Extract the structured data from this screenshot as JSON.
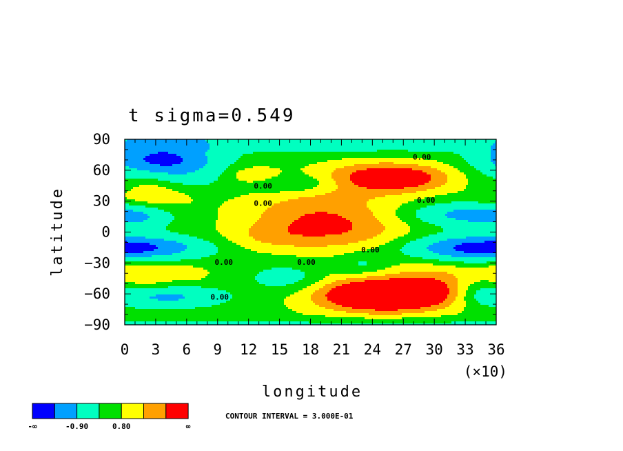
{
  "chart_data": {
    "type": "heatmap",
    "title": "t sigma=0.549",
    "xlabel": "longitude",
    "ylabel": "latitude",
    "x_scale_note": "(×10)",
    "xlim": [
      0,
      36
    ],
    "ylim": [
      -90,
      90
    ],
    "x_ticks": [
      "0",
      "3",
      "6",
      "9",
      "12",
      "15",
      "18",
      "21",
      "24",
      "27",
      "30",
      "33",
      "36"
    ],
    "y_ticks": [
      "90",
      "60",
      "30",
      "0",
      "-30",
      "-60",
      "-90"
    ],
    "contour_interval_text": "CONTOUR INTERVAL = 3.000E-01",
    "contour_labels": [
      {
        "text": "0.00",
        "lon": 28.8,
        "lat": 73
      },
      {
        "text": "0.00",
        "lon": 13.4,
        "lat": 45
      },
      {
        "text": "0.00",
        "lon": 13.4,
        "lat": 28
      },
      {
        "text": "0.00",
        "lon": 29.2,
        "lat": 31
      },
      {
        "text": "0.00",
        "lon": 23.8,
        "lat": -17
      },
      {
        "text": "0.00",
        "lon": 17.6,
        "lat": -29
      },
      {
        "text": "0.00",
        "lon": 9.6,
        "lat": -29
      },
      {
        "text": "0.00",
        "lon": 9.2,
        "lat": -63
      }
    ],
    "colorbar": {
      "colors": [
        "#0000ff",
        "#00a0ff",
        "#00ffc0",
        "#00e000",
        "#ffff00",
        "#ffa000",
        "#ff0000"
      ],
      "tick_labels": [
        "-∞",
        "-0.90",
        "0.80",
        "∞"
      ]
    },
    "field_features": [
      {
        "lon": 4.2,
        "lat": 70,
        "amp": -2.2,
        "rx": 3.4,
        "ry": 11
      },
      {
        "lon": 0.5,
        "lat": 70,
        "amp": -0.5,
        "rx": 2.5,
        "ry": 10
      },
      {
        "lon": 2.5,
        "lat": 38,
        "amp": 0.9,
        "rx": 3.0,
        "ry": 14
      },
      {
        "lon": 5.8,
        "lat": 50,
        "amp": -0.6,
        "rx": 2.8,
        "ry": 10
      },
      {
        "lon": 1.5,
        "lat": 15,
        "amp": -0.8,
        "rx": 2.2,
        "ry": 8
      },
      {
        "lon": 2.0,
        "lat": -15,
        "amp": -1.6,
        "rx": 4.5,
        "ry": 8
      },
      {
        "lon": 1.5,
        "lat": -40,
        "amp": 0.9,
        "rx": 2.5,
        "ry": 10
      },
      {
        "lon": 4.2,
        "lat": -63,
        "amp": -1.4,
        "rx": 3.8,
        "ry": 7
      },
      {
        "lon": 6.5,
        "lat": -40,
        "amp": 0.6,
        "rx": 1.2,
        "ry": 5
      },
      {
        "lon": 18.0,
        "lat": 20,
        "amp": 1.1,
        "rx": 5.0,
        "ry": 16
      },
      {
        "lon": 21.5,
        "lat": 0,
        "amp": 1.0,
        "rx": 4.5,
        "ry": 14
      },
      {
        "lon": 14.0,
        "lat": -5,
        "amp": 0.7,
        "rx": 3.5,
        "ry": 10
      },
      {
        "lon": 24.5,
        "lat": 55,
        "amp": 1.3,
        "rx": 4.0,
        "ry": 10
      },
      {
        "lon": 28.0,
        "lat": 52,
        "amp": 0.9,
        "rx": 3.0,
        "ry": 9
      },
      {
        "lon": 24.0,
        "lat": 45,
        "amp": 0.5,
        "rx": 4.0,
        "ry": 12
      },
      {
        "lon": 12.5,
        "lat": 55,
        "amp": 0.8,
        "rx": 1.8,
        "ry": 6
      },
      {
        "lon": 16.5,
        "lat": 47,
        "amp": -0.8,
        "rx": 3.0,
        "ry": 6
      },
      {
        "lon": 33.5,
        "lat": 17,
        "amp": -1.6,
        "rx": 4.0,
        "ry": 8
      },
      {
        "lon": 33.0,
        "lat": -16,
        "amp": -1.7,
        "rx": 4.5,
        "ry": 9
      },
      {
        "lon": 25.5,
        "lat": -62,
        "amp": 2.6,
        "rx": 4.2,
        "ry": 10
      },
      {
        "lon": 24.0,
        "lat": -55,
        "amp": 0.9,
        "rx": 5.5,
        "ry": 18
      },
      {
        "lon": 30.5,
        "lat": -48,
        "amp": 0.7,
        "rx": 2.5,
        "ry": 14
      },
      {
        "lon": 23.0,
        "lat": -32,
        "amp": -0.8,
        "rx": 1.8,
        "ry": 8
      },
      {
        "lon": 16.0,
        "lat": -45,
        "amp": -0.9,
        "rx": 2.8,
        "ry": 10
      },
      {
        "lon": 34.5,
        "lat": -58,
        "amp": -0.8,
        "rx": 2.0,
        "ry": 10
      },
      {
        "lon": 35.5,
        "lat": 45,
        "amp": -0.5,
        "rx": 1.5,
        "ry": 8
      },
      {
        "lon": 18.0,
        "lat": 82,
        "amp": -0.3,
        "rx": 18.0,
        "ry": 6
      }
    ]
  }
}
